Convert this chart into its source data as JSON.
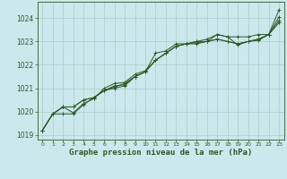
{
  "title": "Graphe pression niveau de la mer (hPa)",
  "background_color": "#cce8ec",
  "grid_color": "#aacccc",
  "line_color": "#2d5a27",
  "xlim": [
    -0.5,
    23.5
  ],
  "ylim": [
    1018.8,
    1024.7
  ],
  "yticks": [
    1019,
    1020,
    1021,
    1022,
    1023,
    1024
  ],
  "xticks": [
    0,
    1,
    2,
    3,
    4,
    5,
    6,
    7,
    8,
    9,
    10,
    11,
    12,
    13,
    14,
    15,
    16,
    17,
    18,
    19,
    20,
    21,
    22,
    23
  ],
  "series": [
    [
      1019.2,
      1019.9,
      1019.9,
      1019.9,
      1020.3,
      1020.6,
      1020.9,
      1021.1,
      1021.15,
      1021.5,
      1021.7,
      1022.5,
      1022.6,
      1022.9,
      1022.9,
      1023.0,
      1023.0,
      1023.3,
      1023.2,
      1023.2,
      1023.2,
      1023.3,
      1023.3,
      1024.35
    ],
    [
      1019.2,
      1019.9,
      1020.2,
      1019.95,
      1020.35,
      1020.55,
      1021.0,
      1021.2,
      1021.25,
      1021.6,
      1021.75,
      1022.2,
      1022.5,
      1022.8,
      1022.9,
      1023.0,
      1023.1,
      1023.3,
      1023.2,
      1022.85,
      1023.0,
      1023.05,
      1023.3,
      1024.05
    ],
    [
      1019.2,
      1019.9,
      1020.2,
      1020.2,
      1020.5,
      1020.6,
      1020.9,
      1021.05,
      1021.2,
      1021.5,
      1021.7,
      1022.2,
      1022.5,
      1022.8,
      1022.9,
      1022.95,
      1023.0,
      1023.1,
      1023.0,
      1022.9,
      1023.0,
      1023.1,
      1023.3,
      1023.9
    ],
    [
      1019.2,
      1019.9,
      1020.2,
      1020.2,
      1020.5,
      1020.6,
      1020.9,
      1021.0,
      1021.1,
      1021.5,
      1021.7,
      1022.2,
      1022.5,
      1022.8,
      1022.9,
      1022.9,
      1023.0,
      1023.1,
      1023.0,
      1022.9,
      1023.0,
      1023.1,
      1023.3,
      1023.8
    ]
  ]
}
